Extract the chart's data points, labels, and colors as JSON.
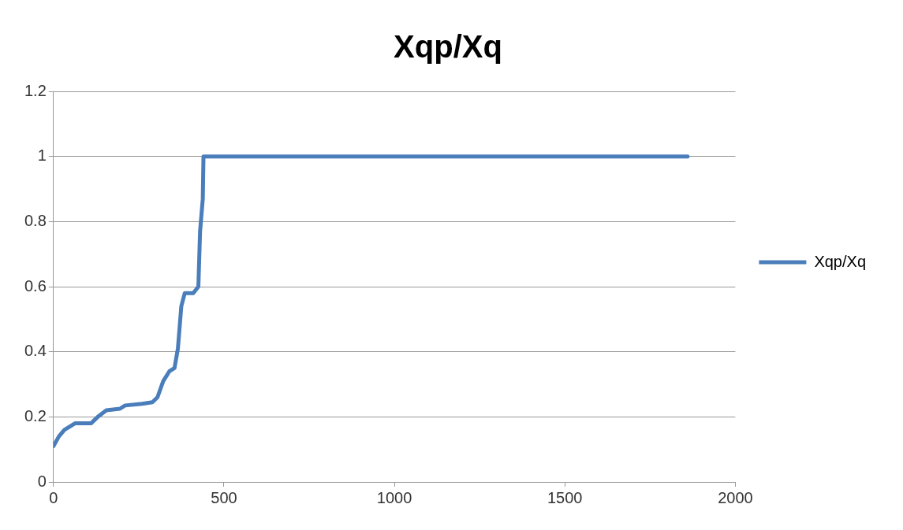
{
  "chart_data": {
    "type": "line",
    "title": "Xqp/Xq",
    "xlim": [
      0,
      2000
    ],
    "xticks": [
      0,
      500,
      1000,
      1500,
      2000
    ],
    "ylim": [
      0,
      1.2
    ],
    "yticks": [
      0,
      0.2,
      0.4,
      0.6,
      0.8,
      1,
      1.2
    ],
    "grid": "y",
    "legend": "right",
    "marker": "none",
    "line_style": "solid",
    "series": [
      {
        "name": "Xqp/Xq",
        "color": "#4a7ebb",
        "x": [
          0,
          16,
          32,
          63,
          110,
          130,
          155,
          195,
          210,
          260,
          290,
          305,
          322,
          340,
          355,
          365,
          375,
          385,
          410,
          425,
          430,
          438,
          440,
          485,
          1860
        ],
        "values": [
          0.11,
          0.14,
          0.16,
          0.18,
          0.18,
          0.2,
          0.22,
          0.225,
          0.235,
          0.24,
          0.245,
          0.26,
          0.31,
          0.34,
          0.35,
          0.41,
          0.54,
          0.58,
          0.58,
          0.6,
          0.77,
          0.87,
          1.0,
          1.0,
          1.0
        ]
      }
    ]
  }
}
